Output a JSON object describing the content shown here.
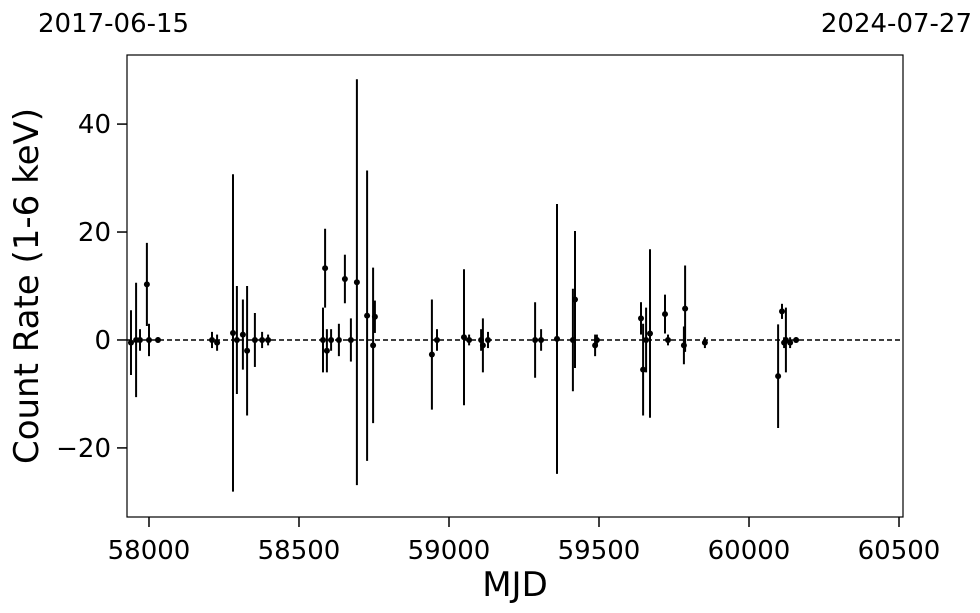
{
  "chart_data": {
    "type": "errorbar",
    "top_labels": [
      "2017-06-15",
      "2024-07-27"
    ],
    "xlabel": "MJD",
    "ylabel": "Count Rate (1-6 keV)",
    "color": "#000000",
    "hline": 0,
    "xlim": [
      57926.7,
      60513.3
    ],
    "ylim": [
      -32.8,
      52.8
    ],
    "xticks": [
      58000,
      58500,
      59000,
      59500,
      60000,
      60500
    ],
    "yticks": [
      {
        "value": -20,
        "label": "−20"
      },
      0,
      20,
      40
    ],
    "x": [
      57940,
      57957,
      57970,
      57993,
      58000,
      58030,
      58210,
      58227,
      58280,
      58293,
      58313,
      58327,
      58353,
      58377,
      58397,
      58580,
      58587,
      58593,
      58607,
      58633,
      58653,
      58673,
      58693,
      58727,
      58747,
      58753,
      58943,
      58960,
      59050,
      59067,
      59107,
      59113,
      59130,
      59287,
      59307,
      59360,
      59413,
      59420,
      59487,
      59493,
      59640,
      59647,
      59657,
      59670,
      59720,
      59730,
      59783,
      59787,
      59853,
      60097,
      60110,
      60117,
      60123,
      60137,
      60157
    ],
    "y": [
      -0.5,
      0,
      0,
      10.3,
      0,
      0,
      0,
      -0.5,
      1.3,
      0,
      1,
      -2,
      0,
      0,
      0,
      0,
      13.3,
      -2,
      0,
      0,
      11.3,
      0,
      10.7,
      4.5,
      -1,
      4.3,
      -2.7,
      0,
      0.5,
      0,
      0,
      -1,
      0,
      0,
      0,
      0.2,
      0,
      7.5,
      -1,
      0,
      4,
      -5.5,
      0,
      1.2,
      4.8,
      0,
      -1,
      5.8,
      -0.5,
      -6.7,
      5.3,
      -0.5,
      0,
      -0.5,
      0
    ],
    "yerr": [
      6,
      10.6,
      2,
      7.7,
      3,
      0.5,
      1.5,
      1.5,
      29.4,
      10,
      6.5,
      12,
      5,
      1.5,
      1,
      6,
      7.3,
      4,
      2,
      3,
      4.5,
      4,
      37.6,
      26.9,
      14.4,
      3,
      10.2,
      2,
      12.6,
      1,
      2,
      5,
      1.5,
      7,
      2,
      25,
      9.5,
      12.7,
      2,
      1,
      3,
      8.5,
      6,
      15.6,
      3.6,
      1,
      3.5,
      8,
      1,
      9.6,
      1.4,
      1,
      6,
      1,
      0.5
    ]
  }
}
